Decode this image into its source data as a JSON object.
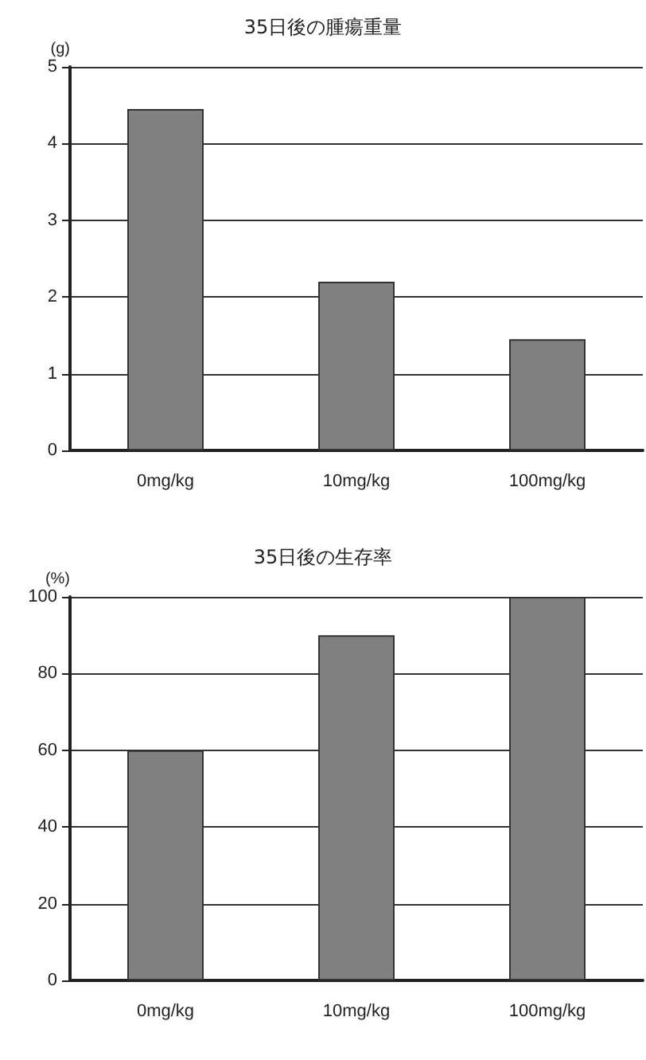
{
  "chart_data": [
    {
      "type": "bar",
      "title": "35日後の腫瘍重量",
      "ylabel": "(g)",
      "categories": [
        "0mg/kg",
        "10mg/kg",
        "100mg/kg"
      ],
      "values": [
        4.45,
        2.2,
        1.45
      ],
      "color": "#808080",
      "ylim": [
        0,
        5
      ],
      "yticks": [
        0,
        1,
        2,
        3,
        4,
        5
      ],
      "grid": "y"
    },
    {
      "type": "bar",
      "title": "35日後の生存率",
      "ylabel": "(%)",
      "categories": [
        "0mg/kg",
        "10mg/kg",
        "100mg/kg"
      ],
      "values": [
        60,
        90,
        100
      ],
      "color": "#808080",
      "ylim": [
        0,
        100
      ],
      "yticks": [
        0,
        20,
        40,
        60,
        80,
        100
      ],
      "grid": "y"
    }
  ]
}
